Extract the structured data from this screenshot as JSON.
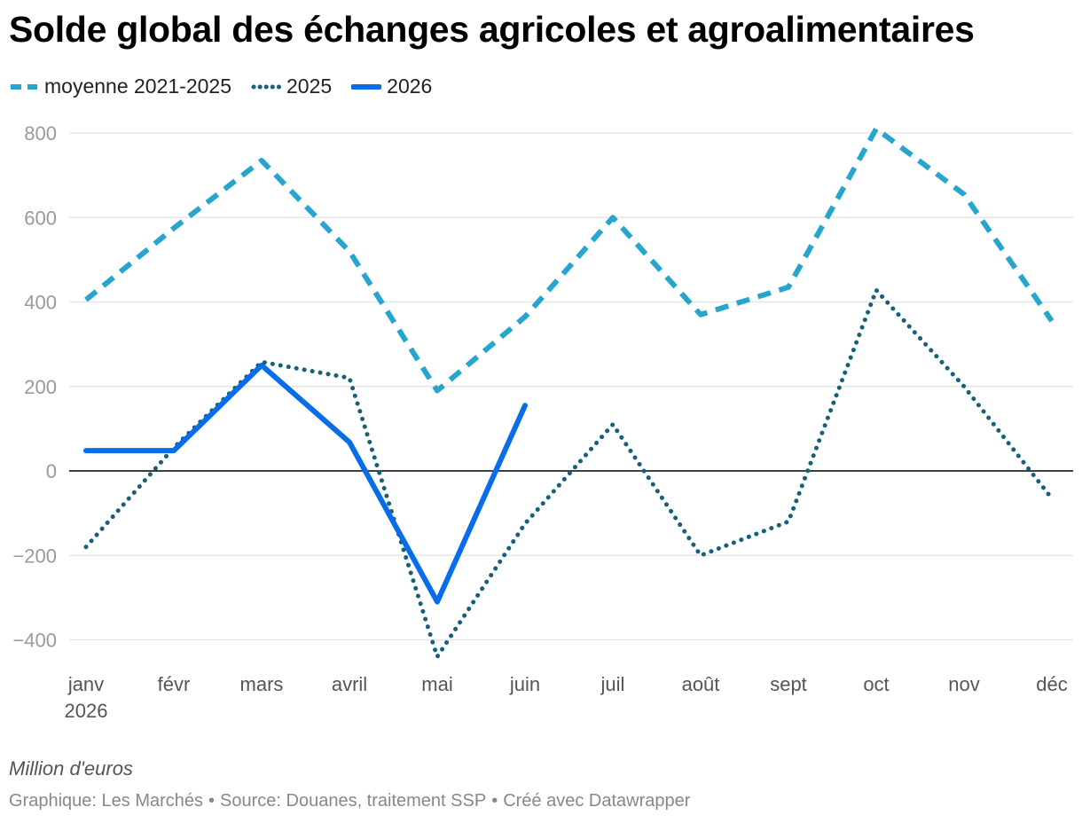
{
  "title": "Solde global des échanges agricoles et agroalimentaires",
  "unit_note": "Million d'euros",
  "footer": {
    "graphique": "Graphique: Les Marchés",
    "source": "Source: Douanes, traitement SSP",
    "tool": "Créé avec Datawrapper",
    "separator": "•"
  },
  "chart_data": {
    "type": "line",
    "categories": [
      "janv",
      "févr",
      "mars",
      "avril",
      "mai",
      "juin",
      "juil",
      "août",
      "sept",
      "oct",
      "nov",
      "déc"
    ],
    "first_category_sublabel": "2026",
    "ylim": [
      -460,
      820
    ],
    "yticks": [
      -400,
      -200,
      0,
      200,
      400,
      600,
      800
    ],
    "ytick_labels": [
      "−400",
      "−200",
      "0",
      "200",
      "400",
      "600",
      "800"
    ],
    "grid": true,
    "legend_position": "top-left",
    "series": [
      {
        "name": "moyenne 2021-2025",
        "style": "dashed",
        "color": "#27a5cf",
        "values": [
          405,
          575,
          735,
          520,
          190,
          365,
          600,
          370,
          435,
          810,
          655,
          355
        ]
      },
      {
        "name": "2025",
        "style": "dotted",
        "color": "#17607a",
        "values": [
          -180,
          55,
          258,
          220,
          -440,
          -125,
          110,
          -200,
          -120,
          428,
          200,
          -65
        ]
      },
      {
        "name": "2026",
        "style": "solid",
        "color": "#0a6de8",
        "values": [
          48,
          48,
          250,
          68,
          -310,
          155,
          null,
          null,
          null,
          null,
          null,
          null
        ]
      }
    ]
  }
}
